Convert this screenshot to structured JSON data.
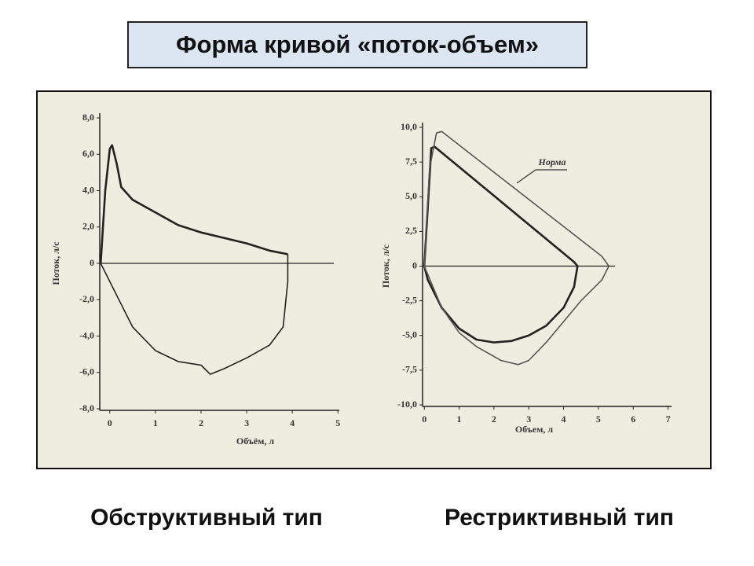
{
  "title": "Форма кривой «поток-объем»",
  "chart_data": [
    {
      "type": "line",
      "caption": "Обструктивный тип",
      "xlabel": "Объём, л",
      "ylabel": "Поток, л/с",
      "xlim": [
        -0.22,
        5.03
      ],
      "ylim": [
        -8,
        8
      ],
      "xticks": [
        0,
        1,
        2,
        3,
        4,
        5
      ],
      "yticks": [
        {
          "value": 8,
          "label": "8,0"
        },
        {
          "value": 6,
          "label": "6,0"
        },
        {
          "value": 4,
          "label": "4,0"
        },
        {
          "value": 2,
          "label": "2,0"
        },
        0,
        {
          "value": -2,
          "label": "-2,0"
        },
        {
          "value": -4,
          "label": "-4,0"
        },
        {
          "value": -6,
          "label": "-6,0"
        },
        {
          "value": -8,
          "label": "-8,0"
        }
      ],
      "series": [
        {
          "color": "#222222",
          "x": [
            -0.2,
            -0.1,
            0,
            0.05,
            0.15,
            0.25,
            0.5,
            1,
            1.5,
            2,
            2.5,
            3,
            3.5,
            3.9
          ],
          "values": [
            0,
            4.0,
            6.3,
            6.5,
            5.5,
            4.2,
            3.5,
            2.8,
            2.1,
            1.7,
            1.4,
            1.1,
            0.7,
            0.5
          ]
        },
        {
          "color": "#222222",
          "x": [
            3.9,
            3.9,
            3.8,
            3.5,
            3,
            2.5,
            2.2,
            2,
            1.5,
            1,
            0.5,
            0.2,
            -0.2
          ],
          "values": [
            0.5,
            -1.0,
            -3.5,
            -4.5,
            -5.2,
            -5.8,
            -6.1,
            -5.6,
            -5.4,
            -4.8,
            -3.5,
            -2,
            0
          ]
        }
      ]
    },
    {
      "type": "line",
      "caption": "Рестриктивный тип",
      "xlabel": "Объем, л",
      "ylabel": "Поток, л/с",
      "xlim": [
        -0.05,
        7.1
      ],
      "ylim": [
        -10,
        10
      ],
      "xticks": [
        0,
        1,
        2,
        3,
        4,
        5,
        6,
        7
      ],
      "yticks": [
        {
          "value": 10,
          "label": "10,0"
        },
        {
          "value": 7.5,
          "label": "7,5"
        },
        {
          "value": 5,
          "label": "5,0"
        },
        {
          "value": 2.5,
          "label": "2,5"
        },
        0,
        {
          "value": -2.5,
          "label": "-2,5"
        },
        {
          "value": -5,
          "label": "-5,0"
        },
        {
          "value": -7.5,
          "label": "-7,5"
        },
        {
          "value": -10,
          "label": "-10,0"
        }
      ],
      "series": [
        {
          "color": "#222222",
          "x": [
            0,
            0.2,
            0.3,
            4.3,
            4.4,
            4.3,
            4,
            3.5,
            3,
            2.5,
            2,
            1.5,
            1,
            0.5,
            0.1,
            0
          ],
          "values": [
            0,
            8.5,
            8.6,
            0.3,
            0,
            -1.5,
            -3,
            -4.3,
            -5.0,
            -5.4,
            -5.5,
            -5.3,
            -4.5,
            -3,
            -1,
            0
          ]
        },
        {
          "name": "Норма",
          "color": "#555555",
          "x": [
            0,
            0.15,
            0.35,
            0.5,
            5.1,
            5.3,
            5.1,
            4.5,
            4,
            3.5,
            3,
            2.7,
            2.2,
            1.5,
            1,
            0.5,
            0
          ],
          "values": [
            0,
            7,
            9.6,
            9.7,
            0.7,
            0,
            -1,
            -2.5,
            -4,
            -5.5,
            -6.8,
            -7.1,
            -6.8,
            -5.8,
            -4.8,
            -3,
            0
          ]
        }
      ]
    }
  ]
}
